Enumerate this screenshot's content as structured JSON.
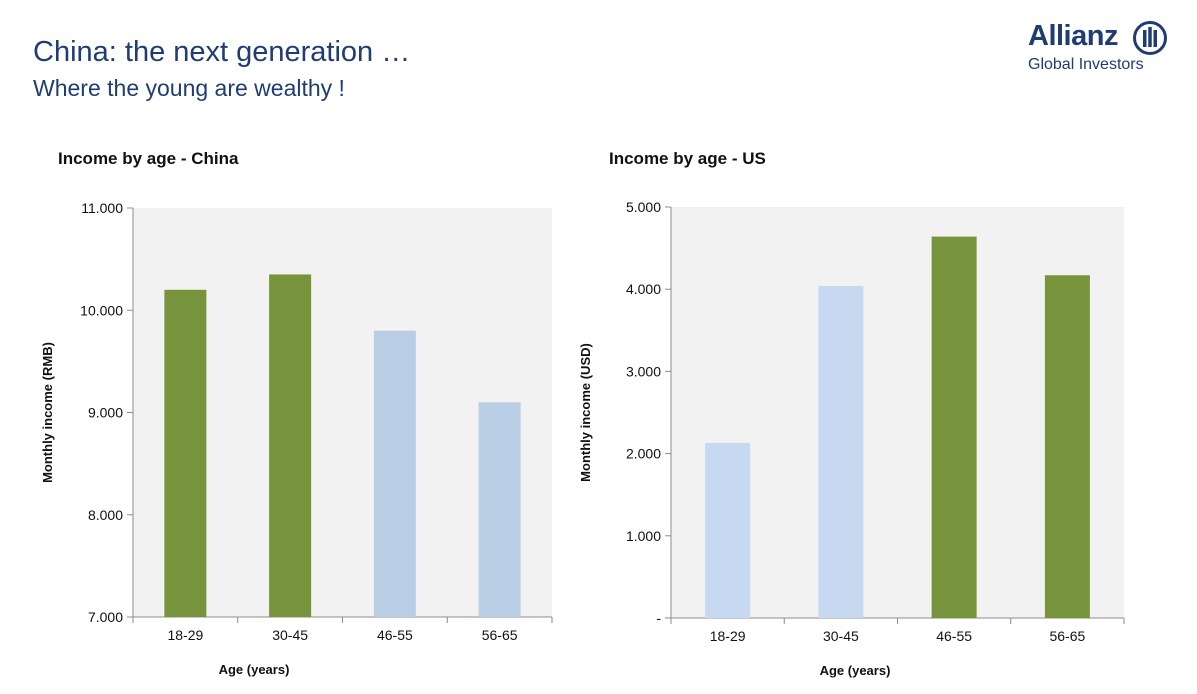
{
  "header": {
    "title": "China: the next generation …",
    "subtitle": "Where the young are wealthy !"
  },
  "logo": {
    "wordmark": "Allianz",
    "subline": "Global Investors",
    "color": "#1f3c73"
  },
  "colors": {
    "green": "#77933c",
    "light_blue_china": "#b9cde5",
    "light_blue_us": "#c6d9f1",
    "plot_background": "#f2f2f2"
  },
  "chart_data": [
    {
      "type": "bar",
      "title": "Income by age - China",
      "xlabel": "Age (years)",
      "ylabel": "Monthly income (RMB)",
      "categories": [
        "18-29",
        "30-45",
        "46-55",
        "56-65"
      ],
      "values": [
        10200,
        10350,
        9800,
        9100
      ],
      "bar_colors": [
        "#77933c",
        "#77933c",
        "#b9cde5",
        "#b9cde5"
      ],
      "ylim": [
        7000,
        11000
      ],
      "yticks": [
        7000,
        8000,
        9000,
        10000,
        11000
      ],
      "ytick_labels": [
        "7.000",
        "8.000",
        "9.000",
        "10.000",
        "11.000"
      ],
      "grid": false,
      "legend": "none"
    },
    {
      "type": "bar",
      "title": "Income by age - US",
      "xlabel": "Age (years)",
      "ylabel": "Monthly income (USD)",
      "categories": [
        "18-29",
        "30-45",
        "46-55",
        "56-65"
      ],
      "values": [
        2130,
        4040,
        4640,
        4170
      ],
      "bar_colors": [
        "#c6d9f1",
        "#c6d9f1",
        "#77933c",
        "#77933c"
      ],
      "ylim": [
        0,
        5000
      ],
      "yticks": [
        0,
        1000,
        2000,
        3000,
        4000,
        5000
      ],
      "ytick_labels": [
        "-",
        "1.000",
        "2.000",
        "3.000",
        "4.000",
        "5.000"
      ],
      "grid": false,
      "legend": "none"
    }
  ]
}
